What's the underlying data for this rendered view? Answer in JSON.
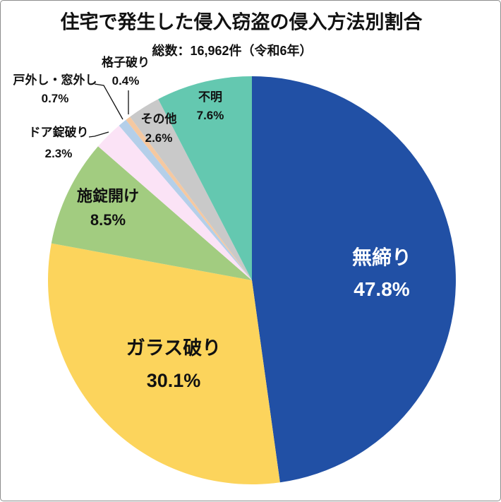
{
  "card": {
    "background": "#ffffff",
    "border_color": "#8c8c8c"
  },
  "chart_data": {
    "type": "pie",
    "title": "住宅で発生した侵入窃盗の侵入方法別割合",
    "subtitle": "総数：16,962件（令和6年）",
    "total_cases": "16,962件",
    "period": "令和6年",
    "start_angle": "12-oclock",
    "direction": "clockwise",
    "legend_position": "none",
    "segments": [
      {
        "label": "無締り",
        "value_pct": 47.8,
        "display_pct": "47.8%",
        "color": "#2150a5",
        "label_color": "#ffffff",
        "label_placement": "inside"
      },
      {
        "label": "ガラス破り",
        "value_pct": 30.1,
        "display_pct": "30.1%",
        "color": "#fcd45c",
        "label_color": "#111111",
        "label_placement": "inside"
      },
      {
        "label": "施錠開け",
        "value_pct": 8.5,
        "display_pct": "8.5%",
        "color": "#a2cc80",
        "label_color": "#111111",
        "label_placement": "inside"
      },
      {
        "label": "ドア錠破り",
        "value_pct": 2.3,
        "display_pct": "2.3%",
        "color": "#fbe3f6",
        "label_color": "#111111",
        "label_placement": "outside-leader"
      },
      {
        "label": "戸外し・窓外し",
        "value_pct": 0.7,
        "display_pct": "0.7%",
        "color": "#b4cfe9",
        "label_color": "#111111",
        "label_placement": "outside-leader"
      },
      {
        "label": "格子破り",
        "value_pct": 0.4,
        "display_pct": "0.4%",
        "color": "#f5c8a0",
        "label_color": "#111111",
        "label_placement": "outside-leader"
      },
      {
        "label": "その他",
        "value_pct": 2.6,
        "display_pct": "2.6%",
        "color": "#c9c9c9",
        "label_color": "#111111",
        "label_placement": "inside"
      },
      {
        "label": "不明",
        "value_pct": 7.6,
        "display_pct": "7.6%",
        "color": "#64c8b0",
        "label_color": "#111111",
        "label_placement": "inside"
      }
    ],
    "leader_line_color": "#111111"
  }
}
